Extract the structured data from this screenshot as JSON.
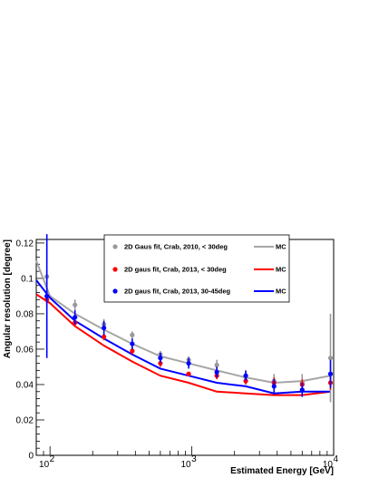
{
  "chart_data": {
    "type": "scatter",
    "xlabel": "Estimated Energy [GeV]",
    "ylabel": "Angular resolution [degree]",
    "xscale": "log",
    "xlim": [
      80,
      10000
    ],
    "ylim": [
      0,
      0.122
    ],
    "x_tick_labels": [
      {
        "value": 100,
        "base": "10",
        "exp": "2"
      },
      {
        "value": 1000,
        "base": "10",
        "exp": "3"
      },
      {
        "value": 10000,
        "base": "10",
        "exp": "4"
      }
    ],
    "y_ticks": [
      0,
      0.02,
      0.04,
      0.06,
      0.08,
      0.1,
      0.12
    ],
    "y_tick_labels": [
      "0",
      "0.02",
      "0.04",
      "0.06",
      "0.08",
      "0.1",
      "0.12"
    ],
    "legend_position": "top-center",
    "series": [
      {
        "name": "2D Gaus fit, Crab, 2010, < 30deg",
        "color": "#999999",
        "points": [
          {
            "x": 95,
            "y": 0.101,
            "err": 0.004
          },
          {
            "x": 150,
            "y": 0.085,
            "err": 0.003
          },
          {
            "x": 240,
            "y": 0.074,
            "err": 0.003
          },
          {
            "x": 380,
            "y": 0.068,
            "err": 0.002
          },
          {
            "x": 600,
            "y": 0.057,
            "err": 0.002
          },
          {
            "x": 950,
            "y": 0.054,
            "err": 0.002
          },
          {
            "x": 1500,
            "y": 0.051,
            "err": 0.003
          },
          {
            "x": 2400,
            "y": 0.044,
            "err": 0.003
          },
          {
            "x": 3800,
            "y": 0.042,
            "err": 0.004
          },
          {
            "x": 6000,
            "y": 0.041,
            "err": 0.005
          },
          {
            "x": 9500,
            "y": 0.055,
            "err": 0.025
          }
        ]
      },
      {
        "name": "2D gaus fit, Crab, 2013, < 30deg",
        "color": "#ff0000",
        "points": [
          {
            "x": 95,
            "y": 0.088,
            "err": 0.003
          },
          {
            "x": 150,
            "y": 0.075,
            "err": 0.002
          },
          {
            "x": 240,
            "y": 0.067,
            "err": 0.002
          },
          {
            "x": 380,
            "y": 0.059,
            "err": 0.002
          },
          {
            "x": 600,
            "y": 0.052,
            "err": 0.002
          },
          {
            "x": 950,
            "y": 0.046,
            "err": 0.001
          },
          {
            "x": 1500,
            "y": 0.045,
            "err": 0.002
          },
          {
            "x": 2400,
            "y": 0.042,
            "err": 0.002
          },
          {
            "x": 3800,
            "y": 0.041,
            "err": 0.003
          },
          {
            "x": 6000,
            "y": 0.04,
            "err": 0.003
          },
          {
            "x": 9500,
            "y": 0.041,
            "err": 0.004
          }
        ]
      },
      {
        "name": "2D gaus fit, Crab, 2013, 30-45deg",
        "color": "#0000ff",
        "points": [
          {
            "x": 95,
            "y": 0.09,
            "err": 0.035
          },
          {
            "x": 150,
            "y": 0.078,
            "err": 0.004
          },
          {
            "x": 240,
            "y": 0.072,
            "err": 0.004
          },
          {
            "x": 380,
            "y": 0.063,
            "err": 0.003
          },
          {
            "x": 600,
            "y": 0.055,
            "err": 0.003
          },
          {
            "x": 950,
            "y": 0.052,
            "err": 0.003
          },
          {
            "x": 1500,
            "y": 0.047,
            "err": 0.003
          },
          {
            "x": 2400,
            "y": 0.045,
            "err": 0.003
          },
          {
            "x": 3800,
            "y": 0.039,
            "err": 0.004
          },
          {
            "x": 6000,
            "y": 0.037,
            "err": 0.004
          },
          {
            "x": 9500,
            "y": 0.046,
            "err": 0.008
          }
        ]
      }
    ],
    "mc_curves": [
      {
        "name": "MC",
        "color": "#a6a6a6",
        "x": [
          80,
          100,
          150,
          240,
          380,
          600,
          950,
          1500,
          2400,
          3800,
          6000,
          9500
        ],
        "y": [
          0.11,
          0.09,
          0.08,
          0.071,
          0.063,
          0.056,
          0.052,
          0.048,
          0.044,
          0.041,
          0.042,
          0.045
        ]
      },
      {
        "name": "MC",
        "color": "#ff0000",
        "x": [
          80,
          100,
          150,
          240,
          380,
          600,
          950,
          1500,
          2400,
          3800,
          6000,
          9500
        ],
        "y": [
          0.091,
          0.086,
          0.073,
          0.062,
          0.053,
          0.045,
          0.041,
          0.036,
          0.035,
          0.034,
          0.034,
          0.036
        ]
      },
      {
        "name": "MC",
        "color": "#0000ff",
        "x": [
          80,
          100,
          150,
          240,
          380,
          600,
          950,
          1500,
          2400,
          3800,
          6000,
          9500
        ],
        "y": [
          0.099,
          0.089,
          0.076,
          0.066,
          0.057,
          0.049,
          0.045,
          0.041,
          0.039,
          0.035,
          0.036,
          0.036
        ]
      }
    ]
  }
}
